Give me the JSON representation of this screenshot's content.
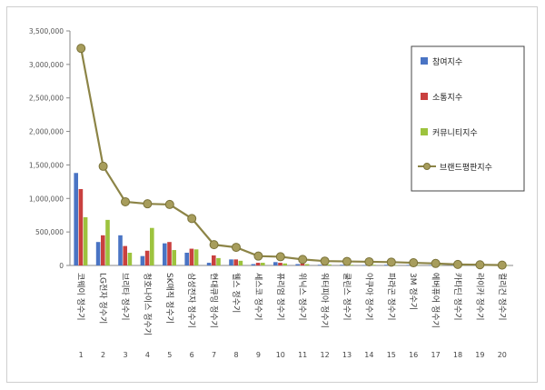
{
  "chart_data": {
    "type": "bar",
    "ylim": [
      0,
      3500000
    ],
    "y_ticks": [
      "0",
      "500,000",
      "1,000,000",
      "1,500,000",
      "2,000,000",
      "2,500,000",
      "3,000,000",
      "3,500,000"
    ],
    "grid": false,
    "legend_position": "top-right",
    "categories": [
      "코웨이 정수기",
      "LG전자 정수기",
      "브리타 정수기",
      "청호나이스 정수기",
      "SK매직 정수기",
      "삼성전자 정수기",
      "현대큐밍 정수기",
      "웰스 정수기",
      "세스코 정수기",
      "퓨리엄 정수기",
      "위닉스 정수기",
      "워터피아 정수기",
      "쿨린스 정수기",
      "아쿠아 정수기",
      "파라곤 정수기",
      "3M 정수기",
      "에버퓨어 정수기",
      "카타딘 정수기",
      "라이카 정수기",
      "컬리건 정수기"
    ],
    "index_labels": [
      "1",
      "2",
      "3",
      "4",
      "5",
      "6",
      "7",
      "8",
      "9",
      "10",
      "11",
      "12",
      "13",
      "14",
      "15",
      "16",
      "17",
      "18",
      "19",
      "20"
    ],
    "series": [
      {
        "name": "참여지수",
        "kind": "bar",
        "color": "#4a74c4",
        "values": [
          1380000,
          350000,
          450000,
          140000,
          330000,
          190000,
          40000,
          90000,
          20000,
          50000,
          20000,
          10000,
          10000,
          5000,
          10000,
          8000,
          5000,
          3000,
          2000,
          2000
        ]
      },
      {
        "name": "소통지수",
        "kind": "bar",
        "color": "#c9403f",
        "values": [
          1140000,
          450000,
          290000,
          220000,
          350000,
          250000,
          150000,
          90000,
          40000,
          40000,
          30000,
          15000,
          10000,
          5000,
          5000,
          5000,
          5000,
          3000,
          2000,
          2000
        ]
      },
      {
        "name": "커뮤니티지수",
        "kind": "bar",
        "color": "#9dc33e",
        "values": [
          720000,
          680000,
          190000,
          560000,
          230000,
          240000,
          110000,
          70000,
          40000,
          30000,
          20000,
          15000,
          10000,
          10000,
          5000,
          5000,
          5000,
          3000,
          2000,
          2000
        ]
      },
      {
        "name": "브랜드평판지수",
        "kind": "line",
        "color": "#8c8446",
        "values": [
          3240000,
          1480000,
          950000,
          920000,
          910000,
          700000,
          310000,
          270000,
          140000,
          130000,
          90000,
          65000,
          60000,
          55000,
          50000,
          40000,
          30000,
          15000,
          10000,
          5000
        ]
      }
    ]
  }
}
